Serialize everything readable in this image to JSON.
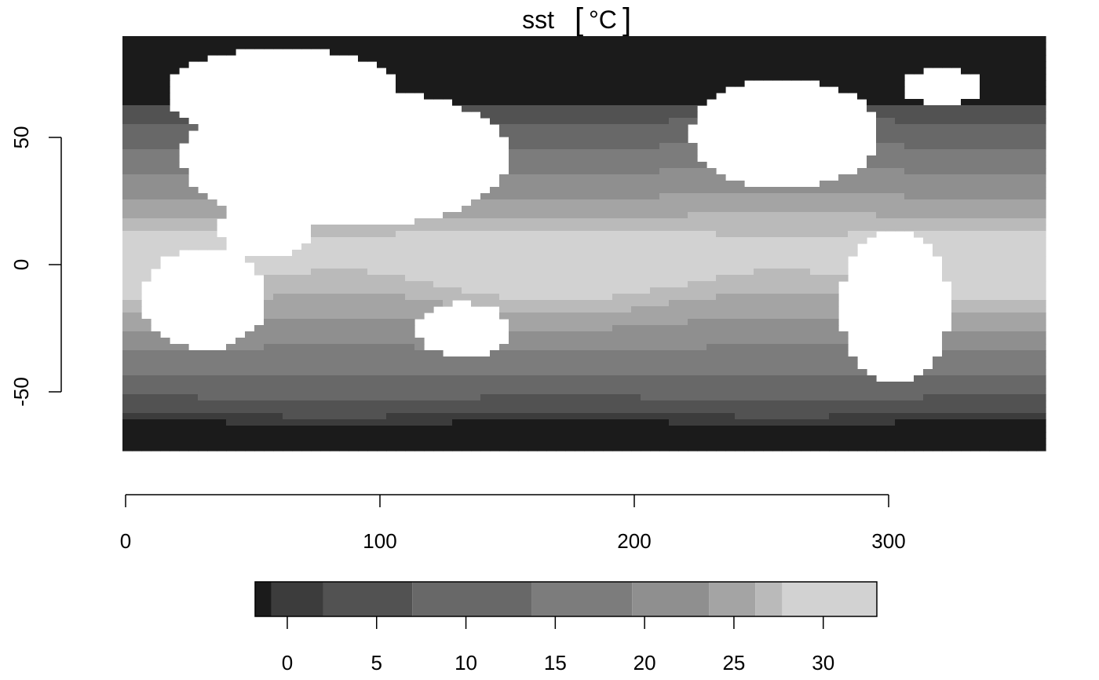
{
  "chart_data": {
    "type": "heatmap",
    "title": "sst",
    "title_unit": "°C",
    "x": {
      "ticks": [
        0,
        100,
        200,
        300
      ],
      "tick_labels": [
        "0",
        "100",
        "200",
        "300"
      ],
      "range": [
        -1,
        360
      ]
    },
    "y": {
      "ticks": [
        50,
        0,
        -50
      ],
      "tick_labels": [
        "50",
        "0",
        "-50"
      ],
      "range": [
        -80,
        90
      ]
    },
    "colorbar": {
      "range": [
        -1.8,
        33.0
      ],
      "breaks": [
        -1.8,
        -0.9,
        2.0,
        7.0,
        13.7,
        19.3,
        23.6,
        26.2,
        27.7,
        33.0
      ],
      "colors": [
        "#1b1b1b",
        "#3c3c3c",
        "#525252",
        "#686868",
        "#7c7c7c",
        "#8f8f8f",
        "#a4a4a4",
        "#bababa",
        "#d2d2d2",
        "#e6e6e6"
      ],
      "ticks": [
        0,
        5,
        10,
        15,
        20,
        25,
        30
      ],
      "tick_labels": [
        "0",
        "5",
        "10",
        "15",
        "20",
        "25",
        "30"
      ]
    },
    "land_color": "#ffffff",
    "grid": false,
    "legend": "bottom"
  }
}
